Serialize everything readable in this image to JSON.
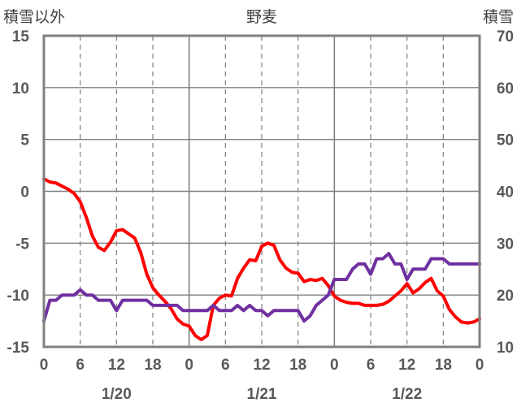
{
  "chart_data": {
    "type": "line",
    "title": "野麦",
    "left_axis_label": "積雪以外",
    "right_axis_label": "積雪",
    "left_ylim": [
      -15,
      15
    ],
    "left_yticks": [
      15,
      10,
      5,
      0,
      -5,
      -10,
      -15
    ],
    "right_ylim": [
      10,
      70
    ],
    "right_yticks": [
      70,
      60,
      50,
      40,
      30,
      20,
      10
    ],
    "x_hours_range": [
      0,
      72
    ],
    "x_tick_labels": [
      "0",
      "6",
      "12",
      "18",
      "0",
      "6",
      "12",
      "18",
      "0",
      "6",
      "12",
      "18",
      "0"
    ],
    "date_labels": [
      "1/20",
      "1/21",
      "1/22"
    ],
    "grid": {
      "vertical_dashed_every_hours": 6,
      "vertical_solid_every_hours": 24
    },
    "colors": {
      "temperature": "#ff0000",
      "snow": "#7030a0",
      "frame": "#808080"
    },
    "series": [
      {
        "axis": "left",
        "color": "#ff0000",
        "x": [
          0,
          1,
          2,
          3,
          4,
          5,
          6,
          7,
          8,
          9,
          10,
          11,
          12,
          13,
          14,
          15,
          16,
          17,
          18,
          19,
          20,
          21,
          22,
          23,
          24,
          25,
          26,
          27,
          28,
          29,
          30,
          31,
          32,
          33,
          34,
          35,
          36,
          37,
          38,
          39,
          40,
          41,
          42,
          43,
          44,
          45,
          46,
          47,
          48,
          49,
          50,
          51,
          52,
          53,
          54,
          55,
          56,
          57,
          58,
          59,
          60,
          61,
          62,
          63,
          64,
          65,
          66,
          67,
          68,
          69,
          70,
          71,
          72
        ],
        "values": [
          1.2,
          0.9,
          0.8,
          0.5,
          0.2,
          -0.2,
          -1.0,
          -2.5,
          -4.3,
          -5.4,
          -5.7,
          -4.9,
          -3.8,
          -3.7,
          -4.1,
          -4.5,
          -5.9,
          -8.0,
          -9.3,
          -10.0,
          -10.6,
          -11.3,
          -12.3,
          -12.8,
          -13.0,
          -13.9,
          -14.3,
          -13.9,
          -11.0,
          -10.3,
          -10.0,
          -10.1,
          -8.4,
          -7.4,
          -6.6,
          -6.7,
          -5.3,
          -5.0,
          -5.2,
          -6.6,
          -7.4,
          -7.8,
          -7.9,
          -8.7,
          -8.5,
          -8.6,
          -8.4,
          -9.1,
          -10.1,
          -10.5,
          -10.7,
          -10.8,
          -10.8,
          -11.0,
          -11.0,
          -11.0,
          -10.9,
          -10.6,
          -10.1,
          -9.6,
          -8.9,
          -9.8,
          -9.4,
          -8.8,
          -8.4,
          -9.6,
          -10.1,
          -11.4,
          -12.1,
          -12.6,
          -12.7,
          -12.6,
          -12.3
        ]
      },
      {
        "axis": "right",
        "color": "#7030a0",
        "x": [
          0,
          1,
          2,
          3,
          4,
          5,
          6,
          7,
          8,
          9,
          10,
          11,
          12,
          13,
          14,
          15,
          16,
          17,
          18,
          19,
          20,
          21,
          22,
          23,
          24,
          25,
          26,
          27,
          28,
          29,
          30,
          31,
          32,
          33,
          34,
          35,
          36,
          37,
          38,
          39,
          40,
          41,
          42,
          43,
          44,
          45,
          46,
          47,
          48,
          49,
          50,
          51,
          52,
          53,
          54,
          55,
          56,
          57,
          58,
          59,
          60,
          61,
          62,
          63,
          64,
          65,
          66,
          67,
          68,
          69,
          70,
          71,
          72
        ],
        "values": [
          15,
          19,
          19,
          20,
          20,
          20,
          21,
          20,
          20,
          19,
          19,
          19,
          17,
          19,
          19,
          19,
          19,
          19,
          18,
          18,
          18,
          18,
          18,
          17,
          17,
          17,
          17,
          17,
          18,
          17,
          17,
          17,
          18,
          17,
          18,
          17,
          17,
          16,
          17,
          17,
          17,
          17,
          17,
          15,
          16,
          18,
          19,
          20,
          23,
          23,
          23,
          25,
          26,
          26,
          24,
          27,
          27,
          28,
          26,
          26,
          23,
          25,
          25,
          25,
          27,
          27,
          27,
          26,
          26,
          26,
          26,
          26,
          26
        ]
      }
    ]
  }
}
